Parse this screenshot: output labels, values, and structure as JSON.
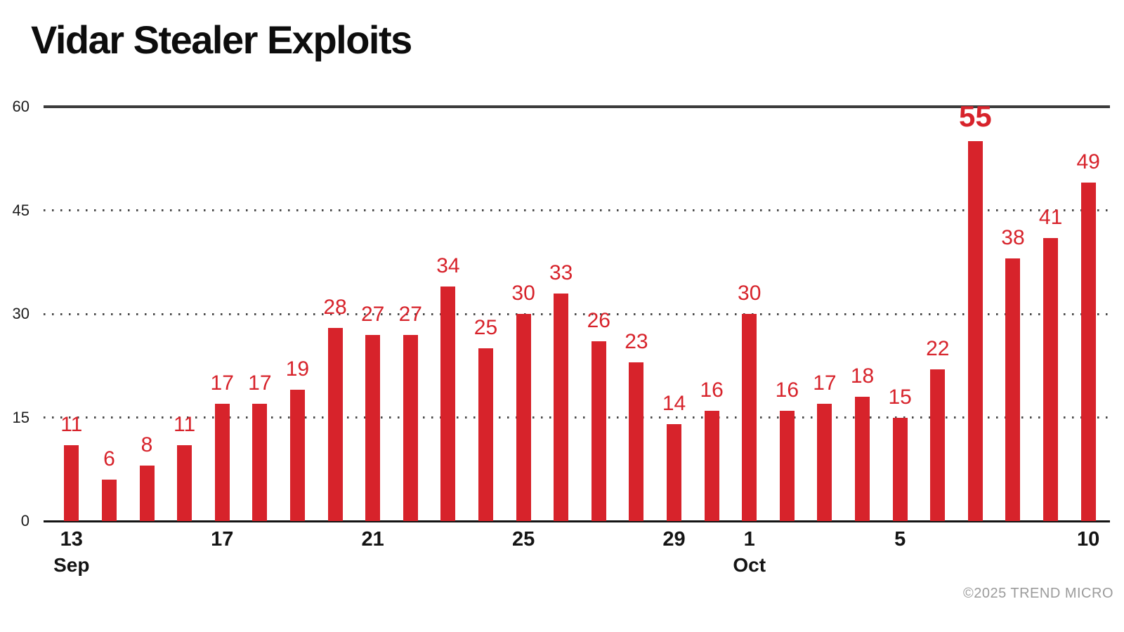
{
  "title": "Vidar Stealer Exploits",
  "copyright": "©2025 TREND MICRO",
  "colors": {
    "bar": "#d7232b",
    "value_label": "#d7232b",
    "title": "#0d0d0d",
    "axis_text": "#141414",
    "grid_dots": "#4a4a4a",
    "top_line": "#3c3c3c",
    "baseline": "#141414",
    "copyright": "#9b9b9b",
    "background": "#ffffff"
  },
  "chart_data": {
    "type": "bar",
    "title": "Vidar Stealer Exploits",
    "categories": [
      "Sep 13",
      "Sep 14",
      "Sep 15",
      "Sep 16",
      "Sep 17",
      "Sep 18",
      "Sep 19",
      "Sep 20",
      "Sep 21",
      "Sep 22",
      "Sep 23",
      "Sep 24",
      "Sep 25",
      "Sep 26",
      "Sep 27",
      "Sep 28",
      "Sep 29",
      "Sep 30",
      "Oct 1",
      "Oct 2",
      "Oct 3",
      "Oct 4",
      "Oct 5",
      "Oct 6",
      "Oct 7",
      "Oct 8",
      "Oct 9",
      "Oct 10"
    ],
    "values": [
      11,
      6,
      8,
      11,
      17,
      17,
      19,
      28,
      27,
      27,
      34,
      25,
      30,
      33,
      26,
      23,
      14,
      16,
      30,
      16,
      17,
      18,
      15,
      22,
      55,
      38,
      41,
      49
    ],
    "ylim": [
      0,
      60
    ],
    "yticks": [
      0,
      15,
      30,
      45,
      60
    ],
    "xticks": [
      {
        "index": 0,
        "day": "13",
        "month": "Sep"
      },
      {
        "index": 4,
        "day": "17"
      },
      {
        "index": 8,
        "day": "21"
      },
      {
        "index": 12,
        "day": "25"
      },
      {
        "index": 16,
        "day": "29"
      },
      {
        "index": 18,
        "day": "1",
        "month": "Oct"
      },
      {
        "index": 22,
        "day": "5"
      },
      {
        "index": 27,
        "day": "10"
      }
    ],
    "bar_labels": true,
    "emphasized_label_index": 24,
    "grid": "dotted-horizontal",
    "legend": "none",
    "xlabel": "",
    "ylabel": ""
  }
}
